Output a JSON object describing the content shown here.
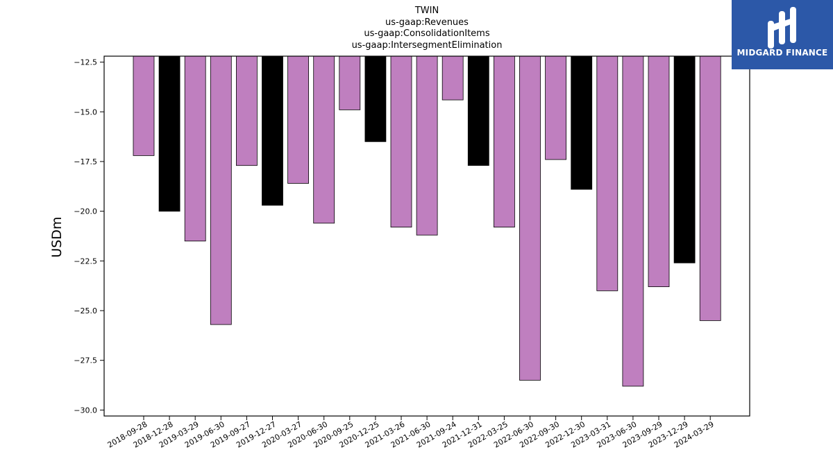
{
  "chart_data": {
    "type": "bar",
    "title": [
      "TWIN",
      "us-gaap:Revenues",
      "us-gaap:ConsolidationItems",
      "us-gaap:IntersegmentElimination"
    ],
    "xlabel": "",
    "ylabel": "USDm",
    "ylim": [
      -30.3,
      -12.2
    ],
    "yticks": [
      -12.5,
      -15.0,
      -17.5,
      -20.0,
      -22.5,
      -25.0,
      -27.5,
      -30.0
    ],
    "ytick_labels": [
      "−12.5",
      "−15.0",
      "−17.5",
      "−20.0",
      "−22.5",
      "−25.0",
      "−27.5",
      "−30.0"
    ],
    "categories": [
      "2018-09-28",
      "2018-12-28",
      "2019-03-29",
      "2019-06-30",
      "2019-09-27",
      "2019-12-27",
      "2020-03-27",
      "2020-06-30",
      "2020-09-25",
      "2020-12-25",
      "2021-03-26",
      "2021-06-30",
      "2021-09-24",
      "2021-12-31",
      "2022-03-25",
      "2022-06-30",
      "2022-09-30",
      "2022-12-30",
      "2023-03-31",
      "2023-06-30",
      "2023-09-29",
      "2023-12-29",
      "2024-03-29"
    ],
    "values": [
      -17.2,
      -20.0,
      -21.5,
      -25.7,
      -17.7,
      -19.7,
      -18.6,
      -20.6,
      -14.9,
      -16.5,
      -20.8,
      -21.2,
      -14.4,
      -17.7,
      -20.8,
      -28.5,
      -17.4,
      -18.9,
      -24.0,
      -28.8,
      -23.8,
      -22.6,
      -25.5
    ],
    "bar_colors": [
      "#bf7fbf",
      "#000000",
      "#bf7fbf",
      "#bf7fbf",
      "#bf7fbf",
      "#000000",
      "#bf7fbf",
      "#bf7fbf",
      "#bf7fbf",
      "#000000",
      "#bf7fbf",
      "#bf7fbf",
      "#bf7fbf",
      "#000000",
      "#bf7fbf",
      "#bf7fbf",
      "#bf7fbf",
      "#000000",
      "#bf7fbf",
      "#bf7fbf",
      "#bf7fbf",
      "#000000",
      "#bf7fbf"
    ],
    "grid": false,
    "legend": "none"
  },
  "logo": {
    "text": "MIDGARD FINANCE",
    "background": "#2c58a8",
    "icon": "midgard-logo-icon"
  }
}
